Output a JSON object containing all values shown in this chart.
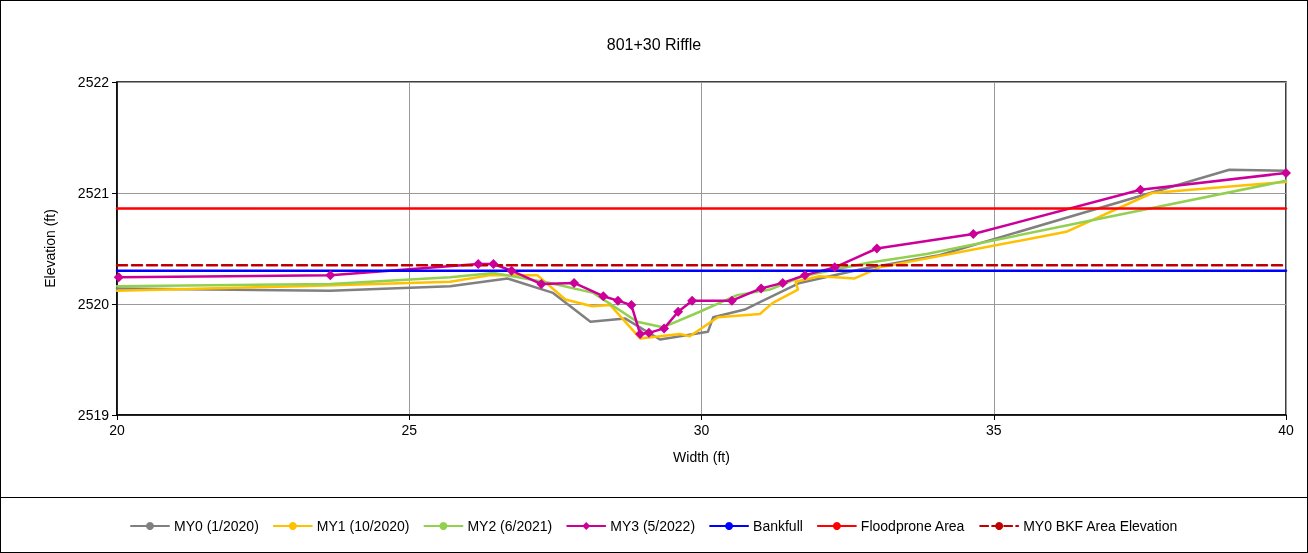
{
  "chart_data": {
    "type": "line",
    "title": "801+30 Riffle",
    "xlabel": "Width (ft)",
    "ylabel": "Elevation (ft)",
    "xlim": [
      20,
      40
    ],
    "xticks": [
      20,
      25,
      30,
      35,
      40
    ],
    "ylim": [
      2519,
      2522
    ],
    "yticks": [
      2519,
      2520,
      2521,
      2522
    ],
    "grid": true,
    "legend": "bottom",
    "series": [
      {
        "name": "MY0 (1/2020)",
        "color": "#808080",
        "marker": "none",
        "x": [
          20,
          23.65,
          25.7,
          26.68,
          27.46,
          28.1,
          28.69,
          29.29,
          30.11,
          30.2,
          30.74,
          31.68,
          32.71,
          34.07,
          39.03,
          40
        ],
        "values": [
          2520.14,
          2520.12,
          2520.16,
          2520.23,
          2520.1,
          2519.84,
          2519.87,
          2519.68,
          2519.75,
          2519.88,
          2519.95,
          2520.19,
          2520.31,
          2520.44,
          2521.21,
          2521.2
        ]
      },
      {
        "name": "MY1 (10/2020)",
        "color": "#ffc000",
        "marker": "none",
        "x": [
          20,
          23.14,
          25.7,
          26.39,
          27.19,
          27.67,
          28.13,
          28.44,
          28.95,
          29.63,
          29.8,
          30.28,
          31,
          31.22,
          31.65,
          31.61,
          32.02,
          32.62,
          33.05,
          36.24,
          37.71,
          40
        ],
        "values": [
          2520.12,
          2520.16,
          2520.2,
          2520.26,
          2520.26,
          2520.04,
          2519.98,
          2519.99,
          2519.69,
          2519.73,
          2519.71,
          2519.88,
          2519.91,
          2520.01,
          2520.13,
          2520.2,
          2520.25,
          2520.23,
          2520.33,
          2520.65,
          2521,
          2521.1
        ]
      },
      {
        "name": "MY2 (6/2021)",
        "color": "#92d050",
        "marker": "none",
        "x": [
          20,
          23.65,
          25.7,
          26.44,
          27.41,
          28.15,
          28.9,
          29.34,
          29.97,
          30.61,
          31.17,
          31.73,
          32.83,
          33.85,
          40
        ],
        "values": [
          2520.16,
          2520.18,
          2520.24,
          2520.28,
          2520.19,
          2520.1,
          2519.84,
          2519.79,
          2519.93,
          2520.08,
          2520.13,
          2520.25,
          2520.37,
          2520.45,
          2521.11
        ]
      },
      {
        "name": "MY3 (5/2022)",
        "color": "#cc0099",
        "marker": "diamond",
        "x": [
          20.03,
          23.65,
          26.18,
          26.44,
          26.75,
          27.26,
          27.82,
          28.32,
          28.57,
          28.8,
          28.95,
          29.1,
          29.36,
          29.6,
          29.84,
          30.52,
          31.02,
          31.39,
          31.77,
          32.28,
          33,
          34.65,
          37.51,
          40
        ],
        "values": [
          2520.24,
          2520.26,
          2520.36,
          2520.36,
          2520.3,
          2520.18,
          2520.19,
          2520.07,
          2520.03,
          2519.99,
          2519.73,
          2519.74,
          2519.78,
          2519.93,
          2520.03,
          2520.03,
          2520.14,
          2520.19,
          2520.26,
          2520.33,
          2520.5,
          2520.63,
          2521.03,
          2521.18
        ]
      },
      {
        "name": "Bankfull",
        "color": "#0000ff",
        "marker": "none",
        "x": [
          20,
          40
        ],
        "values": [
          2520.3,
          2520.3
        ]
      },
      {
        "name": "Floodprone Area",
        "color": "#ff0000",
        "marker": "none",
        "x": [
          20,
          40
        ],
        "values": [
          2520.86,
          2520.86
        ]
      },
      {
        "name": "MY0 BKF Area Elevation",
        "color": "#c00000",
        "marker": "none",
        "line_style": "dashed",
        "x": [
          20,
          40
        ],
        "values": [
          2520.35,
          2520.35
        ]
      }
    ]
  }
}
